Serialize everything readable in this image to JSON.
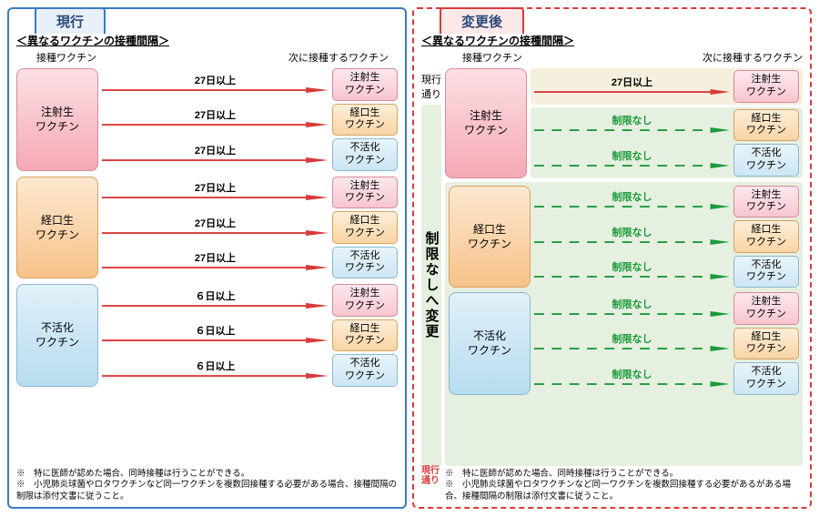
{
  "left": {
    "tab": "現行",
    "title": "＜異なるワクチンの接種間隔＞",
    "col1": "接種ワクチン",
    "col2": "次に接種するワクチン",
    "arrow_color": "#d93a3a",
    "groups": [
      {
        "src": "注射生\nワクチン",
        "cls": "pink",
        "rows": [
          {
            "lbl": "27日以上",
            "tgt": "注射生\nワクチン",
            "tcls": "pink"
          },
          {
            "lbl": "27日以上",
            "tgt": "経口生\nワクチン",
            "tcls": "orange"
          },
          {
            "lbl": "27日以上",
            "tgt": "不活化\nワクチン",
            "tcls": "blue"
          }
        ]
      },
      {
        "src": "経口生\nワクチン",
        "cls": "orange",
        "rows": [
          {
            "lbl": "27日以上",
            "tgt": "注射生\nワクチン",
            "tcls": "pink"
          },
          {
            "lbl": "27日以上",
            "tgt": "経口生\nワクチン",
            "tcls": "orange"
          },
          {
            "lbl": "27日以上",
            "tgt": "不活化\nワクチン",
            "tcls": "blue"
          }
        ]
      },
      {
        "src": "不活化\nワクチン",
        "cls": "blue",
        "rows": [
          {
            "lbl": "６日以上",
            "tgt": "注射生\nワクチン",
            "tcls": "pink"
          },
          {
            "lbl": "６日以上",
            "tgt": "経口生\nワクチン",
            "tcls": "orange"
          },
          {
            "lbl": "６日以上",
            "tgt": "不活化\nワクチン",
            "tcls": "blue"
          }
        ]
      }
    ],
    "foot": [
      "※　特に医師が認めた場合、同時接種は行うことができる。",
      "※　小児肺炎球菌やロタワクチンなど同一ワクチンを複数回接種する必要がある場合、接種間隔の制限は添付文書に従うこと。"
    ]
  },
  "right": {
    "tab": "変更後",
    "title": "＜異なるワクチンの接種間隔＞",
    "col1": "接種ワクチン",
    "col2": "次に接種するワクチン",
    "side_top": "現行\n通り",
    "side_mid": "制限なしへ変更",
    "side_bot": "現行\n通り",
    "red_arrow": "#d93a3a",
    "green_arrow": "#1a9a3a",
    "top_group": {
      "src": "注射生\nワクチン",
      "cls": "pink",
      "top_row": {
        "lbl": "27日以上",
        "tgt": "注射生\nワクチン",
        "tcls": "pink"
      },
      "rest": [
        {
          "lbl": "制限なし",
          "tgt": "経口生\nワクチン",
          "tcls": "orange"
        },
        {
          "lbl": "制限なし",
          "tgt": "不活化\nワクチン",
          "tcls": "blue"
        }
      ]
    },
    "groups": [
      {
        "src": "経口生\nワクチン",
        "cls": "orange",
        "rows": [
          {
            "lbl": "制限なし",
            "tgt": "注射生\nワクチン",
            "tcls": "pink"
          },
          {
            "lbl": "制限なし",
            "tgt": "経口生\nワクチン",
            "tcls": "orange"
          },
          {
            "lbl": "制限なし",
            "tgt": "不活化\nワクチン",
            "tcls": "blue"
          }
        ]
      },
      {
        "src": "不活化\nワクチン",
        "cls": "blue",
        "rows": [
          {
            "lbl": "制限なし",
            "tgt": "注射生\nワクチン",
            "tcls": "pink"
          },
          {
            "lbl": "制限なし",
            "tgt": "経口生\nワクチン",
            "tcls": "orange"
          },
          {
            "lbl": "制限なし",
            "tgt": "不活化\nワクチン",
            "tcls": "blue"
          }
        ]
      }
    ],
    "foot": [
      "※　特に医師が認めた場合、同時接種は行うことができる。",
      "※　小児肺炎球菌やロタワクチンなど同一ワクチンを複数回接種する必要があるがある場合、接種間隔の制限は添付文書に従うこと。"
    ]
  }
}
